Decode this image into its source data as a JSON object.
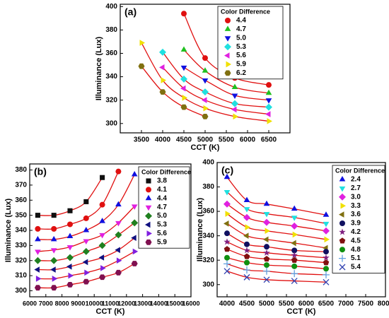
{
  "chart_data": [
    {
      "type": "scatter",
      "label": "(a)",
      "legend_title": "Color Difference",
      "xlabel": "CCT (K)",
      "ylabel": "Illuminance (Lux)",
      "x": [
        3500,
        4000,
        4500,
        5000,
        5700,
        6500
      ],
      "xlim": [
        3000,
        7000
      ],
      "ylim": [
        292,
        402
      ],
      "xticks": [
        3500,
        4000,
        4500,
        5000,
        5500,
        6000,
        6500
      ],
      "yticks": [
        300,
        320,
        340,
        360,
        380,
        400
      ],
      "fit_color": "#e01010",
      "series": [
        {
          "name": "4.4",
          "color": "#e01010",
          "marker": "circle",
          "values": [
            null,
            null,
            394,
            356,
            339,
            333
          ]
        },
        {
          "name": "4.7",
          "color": "#20c020",
          "marker": "triangle-up",
          "values": [
            null,
            null,
            363,
            345,
            331,
            326
          ]
        },
        {
          "name": "5.0",
          "color": "#1010e0",
          "marker": "triangle-down",
          "values": [
            null,
            null,
            348,
            337,
            324,
            320
          ]
        },
        {
          "name": "5.3",
          "color": "#20e0e0",
          "marker": "diamond",
          "values": [
            null,
            361,
            338,
            327,
            317,
            314
          ]
        },
        {
          "name": "5.6",
          "color": "#e020e0",
          "marker": "triangle-left",
          "values": [
            null,
            348,
            330,
            320,
            312,
            308
          ]
        },
        {
          "name": "5.9",
          "color": "#f0e000",
          "marker": "triangle-right",
          "values": [
            369,
            337,
            322,
            313,
            306,
            302
          ]
        },
        {
          "name": "6.2",
          "color": "#807010",
          "marker": "hexagon",
          "values": [
            349,
            327,
            314,
            306,
            null,
            null
          ]
        }
      ]
    },
    {
      "type": "scatter",
      "label": "(b)",
      "legend_title": "Color Difference",
      "xlabel": "CCT (K)",
      "ylabel": "Illuminance (Lux)",
      "x": [
        6500,
        7500,
        8500,
        9500,
        10500,
        11500,
        12500
      ],
      "xlim": [
        6000,
        16000
      ],
      "ylim": [
        296,
        384
      ],
      "xticks": [
        6000,
        7000,
        8000,
        9000,
        10000,
        11000,
        12000,
        13000,
        14000,
        15000,
        16000
      ],
      "yticks": [
        300,
        310,
        320,
        330,
        340,
        350,
        360,
        370,
        380
      ],
      "fit_color": "#e01010",
      "series": [
        {
          "name": "3.8",
          "color": "#101010",
          "marker": "square",
          "values": [
            350,
            350,
            353,
            359,
            375,
            null,
            null
          ]
        },
        {
          "name": "4.1",
          "color": "#e01010",
          "marker": "circle",
          "values": [
            341,
            341,
            344,
            348,
            357,
            379,
            null
          ]
        },
        {
          "name": "4.4",
          "color": "#1010e0",
          "marker": "triangle-up",
          "values": [
            334,
            334,
            336,
            340,
            346,
            357,
            377
          ]
        },
        {
          "name": "4.7",
          "color": "#e020e0",
          "marker": "triangle-down",
          "values": [
            326,
            327,
            329,
            333,
            337,
            345,
            356
          ]
        },
        {
          "name": "5.0",
          "color": "#208020",
          "marker": "diamond",
          "values": [
            320,
            320,
            322,
            326,
            330,
            337,
            345
          ]
        },
        {
          "name": "5.3",
          "color": "#101080",
          "marker": "triangle-left",
          "values": [
            314,
            314,
            316,
            319,
            322,
            327,
            335
          ]
        },
        {
          "name": "5.6",
          "color": "#8020e0",
          "marker": "triangle-right",
          "values": [
            308,
            308,
            310,
            312,
            315,
            320,
            326
          ]
        },
        {
          "name": "5.9",
          "color": "#801050",
          "marker": "hexagon",
          "values": [
            302,
            302,
            304,
            306,
            309,
            312,
            318
          ]
        }
      ]
    },
    {
      "type": "scatter",
      "label": "(c)",
      "legend_title": "Color Difference",
      "xlabel": "CCT (K)",
      "ylabel": "Illuminance (Lux)",
      "x": [
        4000,
        4500,
        5000,
        5700,
        6500
      ],
      "xlim": [
        3750,
        8000
      ],
      "ylim": [
        290,
        400
      ],
      "xticks": [
        4000,
        4500,
        5000,
        5500,
        6000,
        6500,
        7000,
        7500,
        8000
      ],
      "yticks": [
        300,
        320,
        340,
        360,
        380,
        400
      ],
      "fit_color": "#e01010",
      "series": [
        {
          "name": "2.4",
          "color": "#1010e0",
          "marker": "triangle-up",
          "values": [
            388,
            369,
            366,
            362,
            357
          ]
        },
        {
          "name": "2.7",
          "color": "#20e0e0",
          "marker": "triangle-down",
          "values": [
            376,
            362,
            358,
            355,
            350
          ]
        },
        {
          "name": "3.0",
          "color": "#e020e0",
          "marker": "diamond",
          "values": [
            366,
            355,
            351,
            348,
            344
          ]
        },
        {
          "name": "3.3",
          "color": "#f0e000",
          "marker": "triangle-right",
          "values": [
            358,
            347,
            344,
            341,
            337
          ]
        },
        {
          "name": "3.6",
          "color": "#807010",
          "marker": "triangle-left",
          "values": [
            350,
            340,
            337,
            334,
            330
          ]
        },
        {
          "name": "3.9",
          "color": "#101060",
          "marker": "circle",
          "values": [
            342,
            333,
            331,
            328,
            327
          ]
        },
        {
          "name": "4.2",
          "color": "#802080",
          "marker": "star",
          "values": [
            335,
            328,
            326,
            324,
            322
          ]
        },
        {
          "name": "4.5",
          "color": "#801010",
          "marker": "pentagon",
          "values": [
            329,
            323,
            321,
            320,
            318
          ]
        },
        {
          "name": "4.8",
          "color": "#109010",
          "marker": "circle",
          "values": [
            322,
            318,
            316,
            315,
            313
          ]
        },
        {
          "name": "5.1",
          "color": "#60a0e0",
          "marker": "plus",
          "values": [
            317,
            312,
            311,
            309,
            308
          ]
        },
        {
          "name": "5.4",
          "color": "#3040b0",
          "marker": "cross",
          "values": [
            311,
            306,
            304,
            303,
            302
          ]
        }
      ]
    }
  ]
}
